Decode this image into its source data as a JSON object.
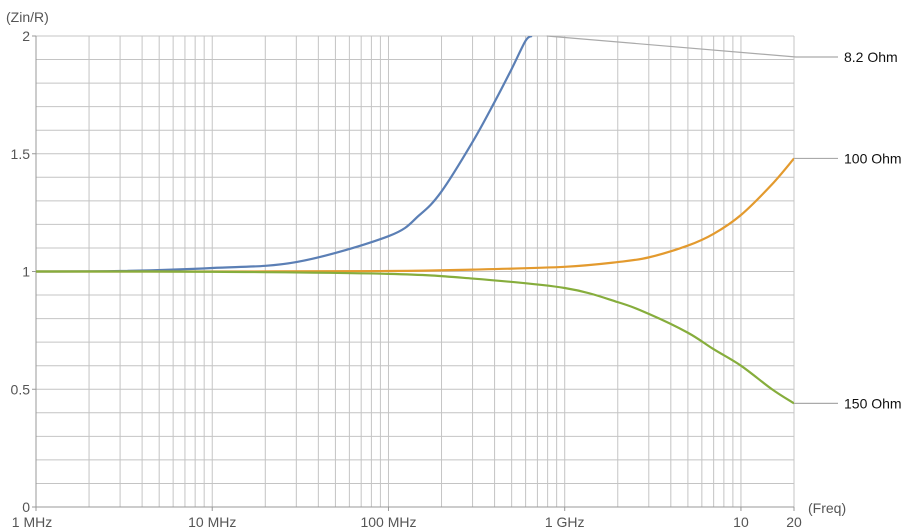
{
  "chart_data": {
    "type": "line",
    "xlabel": "(Freq)",
    "ylabel": "(Zin/R)",
    "x_scale": "log",
    "xlim": [
      1000000,
      20000000000
    ],
    "ylim": [
      0,
      2
    ],
    "grid": true,
    "x_ticks": [
      {
        "value": 1000000,
        "label": "1 MHz"
      },
      {
        "value": 10000000,
        "label": "10 MHz"
      },
      {
        "value": 100000000,
        "label": "100 MHz"
      },
      {
        "value": 1000000000,
        "label": "1 GHz"
      },
      {
        "value": 10000000000,
        "label": "10"
      },
      {
        "value": 20000000000,
        "label": "20"
      }
    ],
    "y_ticks": [
      {
        "value": 0,
        "label": "0"
      },
      {
        "value": 0.5,
        "label": "0.5"
      },
      {
        "value": 1,
        "label": "1"
      },
      {
        "value": 1.5,
        "label": "1.5"
      },
      {
        "value": 2,
        "label": "2"
      }
    ],
    "series": [
      {
        "name": "8.2 Ohm",
        "color": "#5b7fb5",
        "x": [
          1000000,
          3000000,
          10000000,
          30000000,
          100000000,
          150000000,
          200000000,
          300000000,
          400000000,
          500000000,
          600000000,
          650000000
        ],
        "y": [
          1.0,
          1.002,
          1.015,
          1.04,
          1.15,
          1.24,
          1.34,
          1.55,
          1.72,
          1.86,
          1.98,
          2.0
        ]
      },
      {
        "name": "100 Ohm",
        "color": "#e39a2e",
        "x": [
          1000000,
          10000000,
          100000000,
          300000000,
          1000000000,
          2000000000,
          3000000000,
          5000000000,
          7000000000,
          10000000000,
          15000000000,
          20000000000
        ],
        "y": [
          1.0,
          1.0,
          1.002,
          1.008,
          1.02,
          1.04,
          1.06,
          1.11,
          1.16,
          1.24,
          1.37,
          1.48
        ]
      },
      {
        "name": "150 Ohm",
        "color": "#86ad3c",
        "x": [
          1000000,
          10000000,
          100000000,
          300000000,
          1000000000,
          2000000000,
          3000000000,
          5000000000,
          7000000000,
          10000000000,
          15000000000,
          20000000000
        ],
        "y": [
          1.0,
          0.999,
          0.99,
          0.97,
          0.93,
          0.87,
          0.82,
          0.74,
          0.67,
          0.6,
          0.5,
          0.44
        ]
      }
    ],
    "legend": "right",
    "leader_color": "#aaaaaa"
  }
}
